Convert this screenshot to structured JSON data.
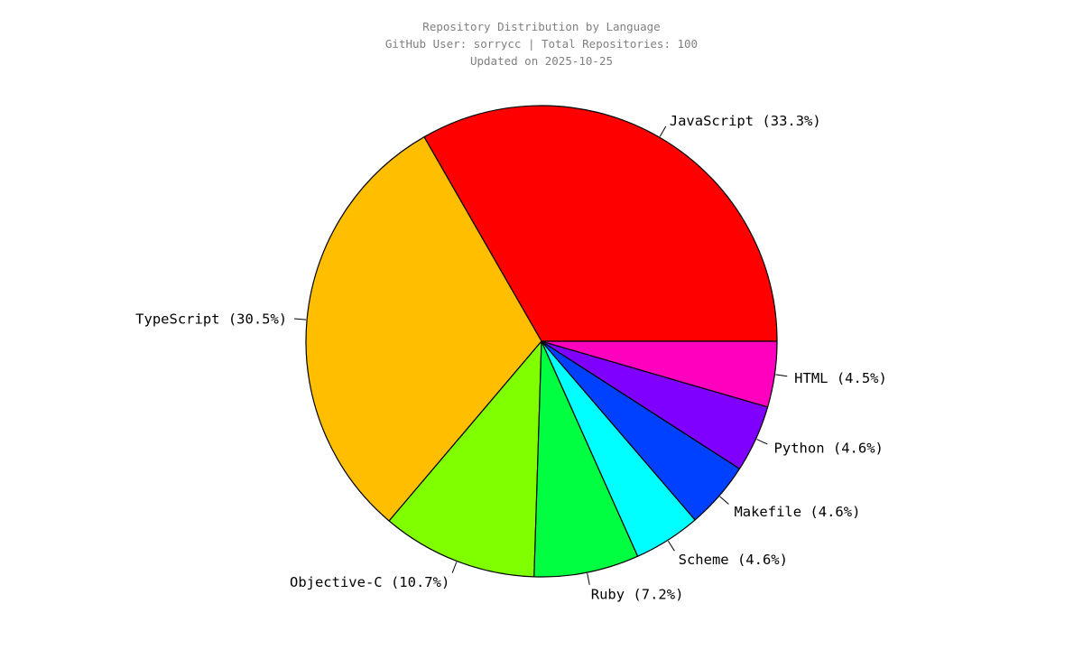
{
  "chart_data": {
    "type": "pie",
    "title": "Repository Distribution by Language",
    "subtitle": "GitHub User: sorrycc | Total Repositories: 100",
    "updated": "Updated on 2025-10-25",
    "categories": [
      "JavaScript",
      "TypeScript",
      "Objective-C",
      "Ruby",
      "Scheme",
      "Makefile",
      "Python",
      "HTML"
    ],
    "values": [
      33.3,
      30.5,
      10.7,
      7.2,
      4.6,
      4.6,
      4.6,
      4.5
    ],
    "labels": [
      "JavaScript (33.3%)",
      "TypeScript (30.5%)",
      "Objective-C (10.7%)",
      "Ruby (7.2%)",
      "Scheme (4.6%)",
      "Makefile (4.6%)",
      "Python (4.6%)",
      "HTML (4.5%)"
    ],
    "colors": [
      "#ff0000",
      "#ffbf00",
      "#80ff00",
      "#00ff40",
      "#00ffff",
      "#0040ff",
      "#8000ff",
      "#ff00bf"
    ],
    "start_angle_deg": 0,
    "direction": "counterclockwise",
    "legend": "none"
  }
}
